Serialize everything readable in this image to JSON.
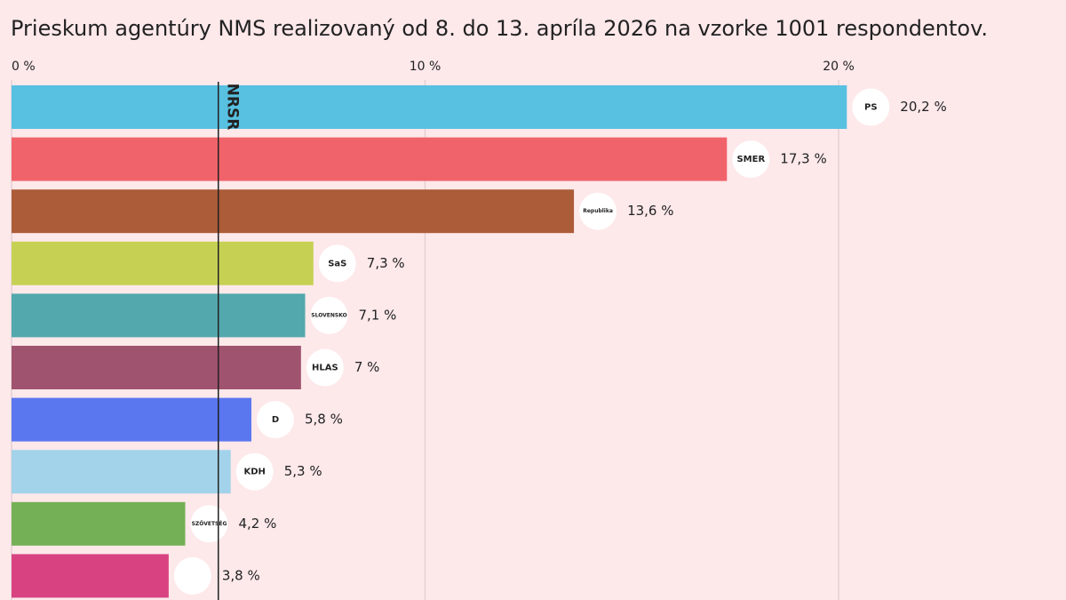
{
  "chart_data": {
    "type": "hbar",
    "subtitle": "Prieskum agentúry NMS realizovaný od 8. do 13. apríla 2026 na vzorke 1001 respondentov.",
    "categories": [
      "PS",
      "SMER",
      "Republika",
      "SaS",
      "SLOVENSKO",
      "HLAS",
      "D",
      "KDH",
      "SZÖVETSÉG",
      null
    ],
    "values": [
      20.2,
      17.3,
      13.6,
      7.3,
      7.1,
      7,
      5.8,
      5.3,
      4.2,
      3.8
    ],
    "value_labels": [
      "20,2 %",
      "17,3 %",
      "13,6 %",
      "7,3 %",
      "7,1 %",
      "7 %",
      "5,8 %",
      "5,3 %",
      "4,2 %",
      "3,8 %"
    ],
    "colors": [
      "#58c0e1",
      "#f1636a",
      "#ac5c38",
      "#c6d154",
      "#52a8ac",
      "#a0536f",
      "#5a77ef",
      "#a3d3ea",
      "#74b055",
      "#d84281"
    ],
    "xlim": [
      0,
      25.5
    ],
    "xticks": [
      {
        "value": 0,
        "label": "0 %"
      },
      {
        "value": 10,
        "label": "10 %"
      },
      {
        "value": 20,
        "label": "20 %"
      }
    ],
    "grid": true,
    "reference_line": {
      "value": 5,
      "label": "NRSR"
    }
  }
}
